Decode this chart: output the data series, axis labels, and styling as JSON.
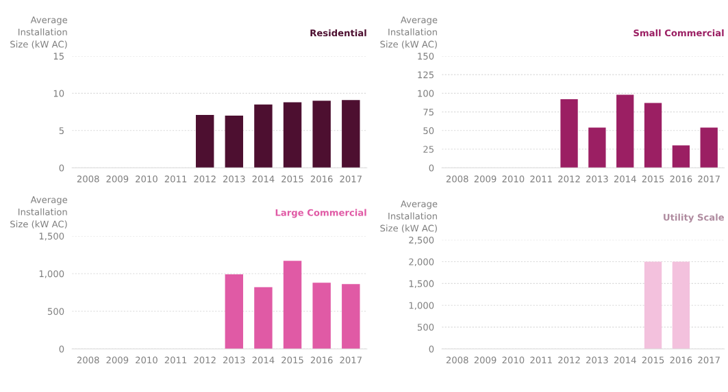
{
  "chart_data": [
    {
      "type": "bar",
      "title": "Residential",
      "ylabel": "Average\nInstallation\nSize (kW AC)",
      "categories": [
        "2008",
        "2009",
        "2010",
        "2011",
        "2012",
        "2013",
        "2014",
        "2015",
        "2016",
        "2017"
      ],
      "values": [
        null,
        null,
        null,
        null,
        7.1,
        7.0,
        8.5,
        8.8,
        9.0,
        9.1
      ],
      "color": "#4d0f30",
      "ylim": [
        0,
        15
      ],
      "yticks": [
        0,
        5,
        10,
        15
      ],
      "grid": "y"
    },
    {
      "type": "bar",
      "title": "Small Commercial",
      "ylabel": "Average\nInstallation\nSize (kW AC)",
      "categories": [
        "2008",
        "2009",
        "2010",
        "2011",
        "2012",
        "2013",
        "2014",
        "2015",
        "2016",
        "2017"
      ],
      "values": [
        null,
        null,
        null,
        null,
        92,
        54,
        98,
        87,
        30,
        54
      ],
      "color": "#9b1f63",
      "ylim": [
        0,
        150
      ],
      "yticks": [
        0,
        25,
        50,
        75,
        100,
        125,
        150
      ],
      "grid": "y"
    },
    {
      "type": "bar",
      "title": "Large Commercial",
      "ylabel": "Average\nInstallation\nSize (kW AC)",
      "categories": [
        "2008",
        "2009",
        "2010",
        "2011",
        "2012",
        "2013",
        "2014",
        "2015",
        "2016",
        "2017"
      ],
      "values": [
        null,
        null,
        null,
        null,
        null,
        990,
        820,
        1170,
        880,
        860
      ],
      "color": "#e05aa5",
      "ylim": [
        0,
        1500
      ],
      "yticks": [
        0,
        500,
        {
          "value": 1000,
          "label": "1,000"
        },
        {
          "value": 1500,
          "label": "1,500"
        }
      ],
      "grid": "y"
    },
    {
      "type": "bar",
      "title": "Utility Scale",
      "ylabel": "Average\nInstallation\nSize (kW AC)",
      "categories": [
        "2008",
        "2009",
        "2010",
        "2011",
        "2012",
        "2013",
        "2014",
        "2015",
        "2016",
        "2017"
      ],
      "values": [
        null,
        null,
        null,
        null,
        null,
        null,
        null,
        2000,
        2000,
        null
      ],
      "color": "#f3c1dd",
      "ylim": [
        0,
        2500
      ],
      "yticks": [
        0,
        500,
        {
          "value": 1000,
          "label": "1,000"
        },
        {
          "value": 1500,
          "label": "1,500"
        },
        {
          "value": 2000,
          "label": "2,000"
        },
        {
          "value": 2500,
          "label": "2,500"
        }
      ],
      "grid": "y"
    }
  ]
}
